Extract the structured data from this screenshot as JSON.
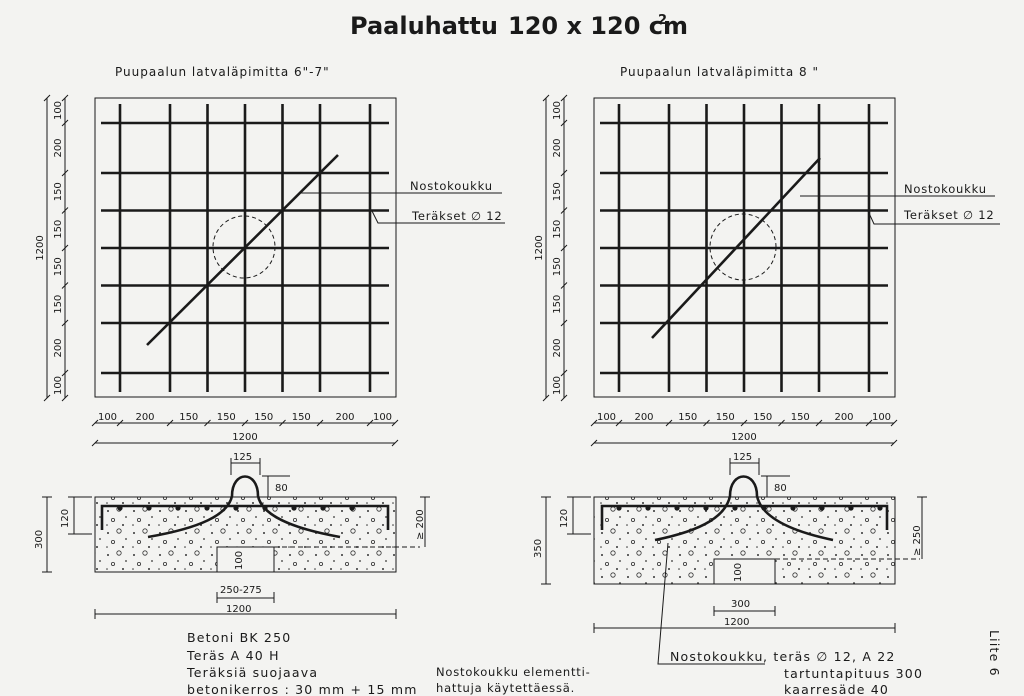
{
  "title": {
    "main": "Paaluhattu",
    "dims": "120 x 120 cm",
    "sup": "2"
  },
  "left_plan": {
    "subtitle": "Puupaalun latvaläpimitta 6\"-7\"",
    "label_hook": "Nostokoukku",
    "label_rebar": "Teräkset ∅ 12",
    "dims_bottom": [
      "100",
      "200",
      "150",
      "150",
      "150",
      "150",
      "200",
      "100"
    ],
    "dims_side": [
      "100",
      "200",
      "150",
      "150",
      "150",
      "150",
      "200",
      "100"
    ],
    "total_h": "1200",
    "total_v": "1200"
  },
  "right_plan": {
    "subtitle": "Puupaalun latvaläpimitta 8 \"",
    "label_hook": "Nostokoukku",
    "label_rebar": "Teräkset ∅ 12",
    "dims_bottom": [
      "100",
      "200",
      "150",
      "150",
      "150",
      "150",
      "200",
      "100"
    ],
    "dims_side": [
      "100",
      "200",
      "150",
      "150",
      "150",
      "150",
      "200",
      "100"
    ],
    "total_h": "1200",
    "total_v": "1200"
  },
  "left_section": {
    "hook_width": "125",
    "hook_height": "80",
    "cover_top": "120",
    "thickness": "300",
    "pile_depth": "100",
    "min_depth": "≥ 200",
    "hole_width": "250-275",
    "total_width": "1200"
  },
  "right_section": {
    "hook_width": "125",
    "hook_height": "80",
    "cover_top": "120",
    "thickness": "350",
    "pile_depth": "100",
    "min_depth": "≥ 250",
    "hole_width": "300",
    "total_width": "1200"
  },
  "notes_left": [
    "Betoni BK 250",
    "Teräs A 40 H",
    "Teräksiä suojaava",
    "betonikerros : 30 mm + 15 mm"
  ],
  "notes_mid": [
    "Nostokoukku elementti-",
    "hattuja käytettäessä."
  ],
  "notes_right": {
    "label": "Nostokoukku",
    "line1": ", teräs ∅ 12, A 22",
    "line2": "tartuntapituus 300",
    "line3": "kaarresäde 40"
  },
  "side_label": "Liite 6"
}
